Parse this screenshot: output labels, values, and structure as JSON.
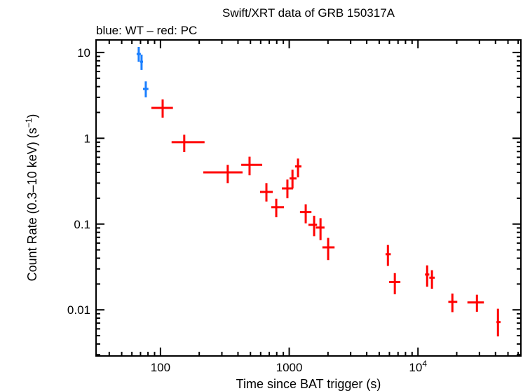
{
  "chart_data": {
    "type": "scatter",
    "title": "Swift/XRT data of GRB 150317A",
    "subtitle": "blue: WT – red: PC",
    "xlabel": "Time since BAT trigger (s)",
    "ylabel": "Count Rate (0.3–10 keV) (s",
    "ylabel_sup": "−1",
    "ylabel_end": ")",
    "x_scale": "log",
    "y_scale": "log",
    "xlim": [
      31.6,
      63000
    ],
    "ylim": [
      0.0029,
      14
    ],
    "x_ticks": [
      {
        "value": 100,
        "label": "100"
      },
      {
        "value": 1000,
        "label": "1000"
      },
      {
        "value": 10000,
        "label": "10",
        "sup": "4"
      }
    ],
    "y_ticks": [
      {
        "value": 10,
        "label": "10"
      },
      {
        "value": 1,
        "label": "1"
      },
      {
        "value": 0.1,
        "label": "0.1"
      },
      {
        "value": 0.01,
        "label": "0.01"
      }
    ],
    "grid": false,
    "colors": {
      "WT": "#1a7fff",
      "PC": "#ff0000"
    },
    "series": [
      {
        "mode": "WT",
        "points": [
          {
            "x": 67.8,
            "xlo": 65.3,
            "xhi": 70.4,
            "y": 9.6,
            "ylo": 7.8,
            "yhi": 11.6
          },
          {
            "x": 71.3,
            "xlo": 69.4,
            "xhi": 73.2,
            "y": 7.8,
            "ylo": 6.25,
            "yhi": 9.45
          },
          {
            "x": 76.9,
            "xlo": 73.2,
            "xhi": 80.6,
            "y": 3.76,
            "ylo": 3.0,
            "yhi": 4.6
          }
        ]
      },
      {
        "mode": "PC",
        "points": [
          {
            "x": 104,
            "xlo": 85,
            "xhi": 125,
            "y": 2.26,
            "ylo": 1.74,
            "yhi": 2.84
          },
          {
            "x": 153,
            "xlo": 122,
            "xhi": 220,
            "y": 0.9,
            "ylo": 0.69,
            "yhi": 1.1
          },
          {
            "x": 333,
            "xlo": 215,
            "xhi": 434,
            "y": 0.4,
            "ylo": 0.3,
            "yhi": 0.49
          },
          {
            "x": 492,
            "xlo": 424,
            "xhi": 617,
            "y": 0.49,
            "ylo": 0.37,
            "yhi": 0.61
          },
          {
            "x": 665,
            "xlo": 594,
            "xhi": 745,
            "y": 0.237,
            "ylo": 0.183,
            "yhi": 0.3
          },
          {
            "x": 793,
            "xlo": 726,
            "xhi": 910,
            "y": 0.157,
            "ylo": 0.12,
            "yhi": 0.197
          },
          {
            "x": 968,
            "xlo": 877,
            "xhi": 1070,
            "y": 0.26,
            "ylo": 0.2,
            "yhi": 0.33
          },
          {
            "x": 1060,
            "xlo": 1006,
            "xhi": 1140,
            "y": 0.34,
            "ylo": 0.26,
            "yhi": 0.43
          },
          {
            "x": 1170,
            "xlo": 1110,
            "xhi": 1244,
            "y": 0.47,
            "ylo": 0.35,
            "yhi": 0.58
          },
          {
            "x": 1343,
            "xlo": 1212,
            "xhi": 1488,
            "y": 0.138,
            "ylo": 0.102,
            "yhi": 0.17
          },
          {
            "x": 1561,
            "xlo": 1410,
            "xhi": 1645,
            "y": 0.098,
            "ylo": 0.072,
            "yhi": 0.125
          },
          {
            "x": 1750,
            "xlo": 1610,
            "xhi": 1880,
            "y": 0.091,
            "ylo": 0.065,
            "yhi": 0.117
          },
          {
            "x": 2006,
            "xlo": 1810,
            "xhi": 2250,
            "y": 0.0535,
            "ylo": 0.038,
            "yhi": 0.069
          },
          {
            "x": 5840,
            "xlo": 5600,
            "xhi": 6150,
            "y": 0.0445,
            "ylo": 0.0325,
            "yhi": 0.057
          },
          {
            "x": 6610,
            "xlo": 5960,
            "xhi": 7300,
            "y": 0.0211,
            "ylo": 0.0152,
            "yhi": 0.0268
          },
          {
            "x": 11780,
            "xlo": 11340,
            "xhi": 12250,
            "y": 0.0258,
            "ylo": 0.0186,
            "yhi": 0.033
          },
          {
            "x": 12840,
            "xlo": 12250,
            "xhi": 13500,
            "y": 0.0237,
            "ylo": 0.0176,
            "yhi": 0.029
          },
          {
            "x": 18500,
            "xlo": 17200,
            "xhi": 20200,
            "y": 0.0124,
            "ylo": 0.0094,
            "yhi": 0.0155
          },
          {
            "x": 28700,
            "xlo": 24200,
            "xhi": 32500,
            "y": 0.0122,
            "ylo": 0.0095,
            "yhi": 0.015
          },
          {
            "x": 41800,
            "xlo": 40700,
            "xhi": 43800,
            "y": 0.0072,
            "ylo": 0.0049,
            "yhi": 0.0103
          }
        ]
      }
    ]
  }
}
